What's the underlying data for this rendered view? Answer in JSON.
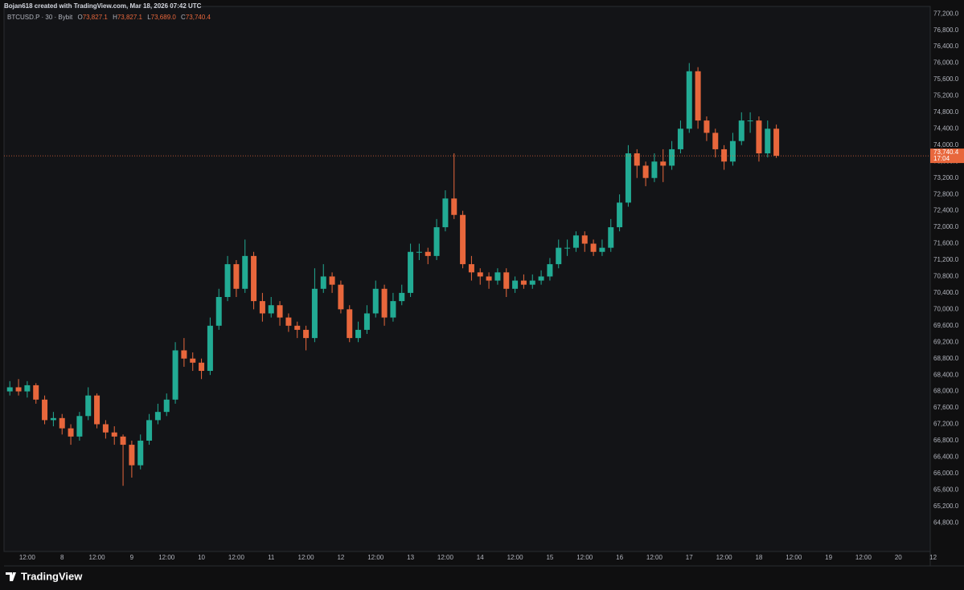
{
  "header": {
    "text": "Bojan618 created with TradingView.com, Mar 18, 2026 07:42 UTC"
  },
  "footer": {
    "brand": "TradingView"
  },
  "chart_data": {
    "type": "candlestick",
    "legend": {
      "symbol": "BTCUSD.P · 30 · Bybit",
      "fields": [
        "O",
        "H",
        "L",
        "C"
      ],
      "values": [
        73827.1,
        73827.1,
        73689.0,
        73740.4
      ],
      "value_labels": [
        "73,827.1",
        "73,827.1",
        "73,689.0",
        "73,740.4"
      ]
    },
    "last_price": {
      "value": 73740.4,
      "label": "73,740.4",
      "countdown": "17:04"
    },
    "up_color": "#22ab94",
    "down_color": "#e8673c",
    "price_line_color": "#e8673c",
    "grid": false,
    "x": [
      "2026-03-07T06:00",
      "2026-03-07T09:00",
      "2026-03-07T12:00",
      "2026-03-07T15:00",
      "2026-03-07T18:00",
      "2026-03-07T21:00",
      "2026-03-08T00:00",
      "2026-03-08T03:00",
      "2026-03-08T06:00",
      "2026-03-08T09:00",
      "2026-03-08T12:00",
      "2026-03-08T15:00",
      "2026-03-08T18:00",
      "2026-03-08T21:00",
      "2026-03-09T00:00",
      "2026-03-09T03:00",
      "2026-03-09T06:00",
      "2026-03-09T09:00",
      "2026-03-09T12:00",
      "2026-03-09T15:00",
      "2026-03-09T18:00",
      "2026-03-09T21:00",
      "2026-03-10T00:00",
      "2026-03-10T03:00",
      "2026-03-10T06:00",
      "2026-03-10T09:00",
      "2026-03-10T12:00",
      "2026-03-10T15:00",
      "2026-03-10T18:00",
      "2026-03-10T21:00",
      "2026-03-11T00:00",
      "2026-03-11T03:00",
      "2026-03-11T06:00",
      "2026-03-11T09:00",
      "2026-03-11T12:00",
      "2026-03-11T15:00",
      "2026-03-11T18:00",
      "2026-03-11T21:00",
      "2026-03-12T00:00",
      "2026-03-12T03:00",
      "2026-03-12T06:00",
      "2026-03-12T09:00",
      "2026-03-12T12:00",
      "2026-03-12T15:00",
      "2026-03-12T18:00",
      "2026-03-12T21:00",
      "2026-03-13T00:00",
      "2026-03-13T03:00",
      "2026-03-13T06:00",
      "2026-03-13T09:00",
      "2026-03-13T12:00",
      "2026-03-13T15:00",
      "2026-03-13T18:00",
      "2026-03-13T21:00",
      "2026-03-14T00:00",
      "2026-03-14T03:00",
      "2026-03-14T06:00",
      "2026-03-14T09:00",
      "2026-03-14T12:00",
      "2026-03-14T15:00",
      "2026-03-14T18:00",
      "2026-03-14T21:00",
      "2026-03-15T00:00",
      "2026-03-15T03:00",
      "2026-03-15T06:00",
      "2026-03-15T09:00",
      "2026-03-15T12:00",
      "2026-03-15T15:00",
      "2026-03-15T18:00",
      "2026-03-15T21:00",
      "2026-03-16T00:00",
      "2026-03-16T03:00",
      "2026-03-16T06:00",
      "2026-03-16T09:00",
      "2026-03-16T12:00",
      "2026-03-16T15:00",
      "2026-03-16T18:00",
      "2026-03-16T21:00",
      "2026-03-17T00:00",
      "2026-03-17T03:00",
      "2026-03-17T06:00",
      "2026-03-17T09:00",
      "2026-03-17T12:00",
      "2026-03-17T15:00",
      "2026-03-17T18:00",
      "2026-03-17T21:00",
      "2026-03-18T00:00",
      "2026-03-18T03:00",
      "2026-03-18T06:00"
    ],
    "open": [
      68000,
      68100,
      68000,
      68150,
      67800,
      67300,
      67350,
      67100,
      66900,
      67400,
      67900,
      67200,
      67000,
      66900,
      66700,
      66200,
      66800,
      67300,
      67500,
      67800,
      69000,
      68800,
      68700,
      68500,
      69600,
      70300,
      71100,
      70500,
      71300,
      70200,
      69900,
      70100,
      69800,
      69600,
      69500,
      69300,
      70500,
      70800,
      70600,
      70000,
      69300,
      69500,
      69900,
      70500,
      69800,
      70200,
      70400,
      71400,
      71400,
      71300,
      72000,
      72700,
      72300,
      71100,
      70900,
      70800,
      70700,
      70900,
      70500,
      70700,
      70600,
      70700,
      70800,
      71100,
      71500,
      71500,
      71800,
      71600,
      71400,
      71500,
      72000,
      72600,
      73800,
      73500,
      73200,
      73600,
      73500,
      73900,
      74400,
      75800,
      74600,
      74300,
      73900,
      73600,
      74100,
      74600,
      74600,
      73800,
      74400
    ],
    "high": [
      68250,
      68300,
      68250,
      68200,
      67900,
      67500,
      67450,
      67200,
      67500,
      68100,
      67950,
      67300,
      67150,
      66950,
      66800,
      66950,
      67450,
      67700,
      67950,
      69200,
      69300,
      68950,
      68800,
      69800,
      70500,
      71300,
      71200,
      71700,
      71400,
      70400,
      70300,
      70200,
      69900,
      69700,
      69600,
      71000,
      71100,
      70900,
      70700,
      70100,
      69700,
      70100,
      70700,
      70600,
      70400,
      70600,
      71600,
      71600,
      71500,
      72200,
      72900,
      73800,
      72400,
      71300,
      71000,
      70900,
      71000,
      71000,
      70800,
      70850,
      70850,
      70950,
      71250,
      71700,
      71700,
      71900,
      71900,
      71700,
      71700,
      72200,
      72800,
      74000,
      73900,
      73600,
      73800,
      73900,
      74100,
      74600,
      76000,
      75900,
      74700,
      74400,
      74000,
      74300,
      74800,
      74800,
      74700,
      74600,
      74500
    ],
    "low": [
      67900,
      67900,
      67850,
      67700,
      67200,
      67150,
      66950,
      66700,
      66800,
      67300,
      67100,
      66850,
      66700,
      65700,
      65900,
      66100,
      66700,
      67200,
      67400,
      67700,
      68600,
      68500,
      68300,
      68400,
      69500,
      70200,
      70300,
      70400,
      70000,
      69700,
      69800,
      69600,
      69450,
      69300,
      69000,
      69200,
      70400,
      70400,
      69900,
      69200,
      69200,
      69400,
      69800,
      69600,
      69700,
      70100,
      70300,
      71200,
      71100,
      71200,
      71900,
      72200,
      71000,
      70700,
      70600,
      70500,
      70600,
      70300,
      70400,
      70500,
      70500,
      70600,
      70700,
      71000,
      71300,
      71400,
      71400,
      71300,
      71300,
      71400,
      71900,
      72500,
      73200,
      73000,
      73100,
      73100,
      73400,
      73800,
      74300,
      74400,
      74100,
      73700,
      73400,
      73500,
      74000,
      74300,
      73600,
      73700,
      73689
    ],
    "close": [
      68100,
      68000,
      68150,
      67800,
      67300,
      67350,
      67100,
      66900,
      67400,
      67900,
      67200,
      67000,
      66900,
      66700,
      66200,
      66800,
      67300,
      67500,
      67800,
      69000,
      68800,
      68700,
      68500,
      69600,
      70300,
      71100,
      70500,
      71300,
      70200,
      69900,
      70100,
      69800,
      69600,
      69500,
      69300,
      70500,
      70800,
      70600,
      70000,
      69300,
      69500,
      69900,
      70500,
      69800,
      70200,
      70400,
      71400,
      71400,
      71300,
      72000,
      72700,
      72300,
      71100,
      70900,
      70800,
      70700,
      70900,
      70500,
      70700,
      70600,
      70700,
      70800,
      71100,
      71500,
      71500,
      71800,
      71600,
      71400,
      71500,
      72000,
      72600,
      73800,
      73500,
      73200,
      73600,
      73500,
      73900,
      74400,
      75800,
      74600,
      74300,
      73900,
      73600,
      74100,
      74600,
      74600,
      73800,
      74400,
      73740.4
    ],
    "xlim": [
      "2026-03-07T04:00",
      "2026-03-20T11:00"
    ],
    "xticks": [
      {
        "value": "2026-03-07T12:00",
        "label": "12:00"
      },
      {
        "value": "2026-03-08T00:00",
        "label": "8"
      },
      {
        "value": "2026-03-08T12:00",
        "label": "12:00"
      },
      {
        "value": "2026-03-09T00:00",
        "label": "9"
      },
      {
        "value": "2026-03-09T12:00",
        "label": "12:00"
      },
      {
        "value": "2026-03-10T00:00",
        "label": "10"
      },
      {
        "value": "2026-03-10T12:00",
        "label": "12:00"
      },
      {
        "value": "2026-03-11T00:00",
        "label": "11"
      },
      {
        "value": "2026-03-11T12:00",
        "label": "12:00"
      },
      {
        "value": "2026-03-12T00:00",
        "label": "12"
      },
      {
        "value": "2026-03-12T12:00",
        "label": "12:00"
      },
      {
        "value": "2026-03-13T00:00",
        "label": "13"
      },
      {
        "value": "2026-03-13T12:00",
        "label": "12:00"
      },
      {
        "value": "2026-03-14T00:00",
        "label": "14"
      },
      {
        "value": "2026-03-14T12:00",
        "label": "12:00"
      },
      {
        "value": "2026-03-15T00:00",
        "label": "15"
      },
      {
        "value": "2026-03-15T12:00",
        "label": "12:00"
      },
      {
        "value": "2026-03-16T00:00",
        "label": "16"
      },
      {
        "value": "2026-03-16T12:00",
        "label": "12:00"
      },
      {
        "value": "2026-03-17T00:00",
        "label": "17"
      },
      {
        "value": "2026-03-17T12:00",
        "label": "12:00"
      },
      {
        "value": "2026-03-18T00:00",
        "label": "18"
      },
      {
        "value": "2026-03-18T12:00",
        "label": "12:00"
      },
      {
        "value": "2026-03-19T00:00",
        "label": "19"
      },
      {
        "value": "2026-03-19T12:00",
        "label": "12:00"
      },
      {
        "value": "2026-03-20T00:00",
        "label": "20"
      },
      {
        "value": "2026-03-20T12:00",
        "label": "12"
      }
    ],
    "ylim": [
      64100,
      77380
    ],
    "yticks": [
      {
        "value": 64800,
        "label": "64,800.0"
      },
      {
        "value": 65200,
        "label": "65,200.0"
      },
      {
        "value": 65600,
        "label": "65,600.0"
      },
      {
        "value": 66000,
        "label": "66,000.0"
      },
      {
        "value": 66400,
        "label": "66,400.0"
      },
      {
        "value": 66800,
        "label": "66,800.0"
      },
      {
        "value": 67200,
        "label": "67,200.0"
      },
      {
        "value": 67600,
        "label": "67,600.0"
      },
      {
        "value": 68000,
        "label": "68,000.0"
      },
      {
        "value": 68400,
        "label": "68,400.0"
      },
      {
        "value": 68800,
        "label": "68,800.0"
      },
      {
        "value": 69200,
        "label": "69,200.0"
      },
      {
        "value": 69600,
        "label": "69,600.0"
      },
      {
        "value": 70000,
        "label": "70,000.0"
      },
      {
        "value": 70400,
        "label": "70,400.0"
      },
      {
        "value": 70800,
        "label": "70,800.0"
      },
      {
        "value": 71200,
        "label": "71,200.0"
      },
      {
        "value": 71600,
        "label": "71,600.0"
      },
      {
        "value": 72000,
        "label": "72,000.0"
      },
      {
        "value": 72400,
        "label": "72,400.0"
      },
      {
        "value": 72800,
        "label": "72,800.0"
      },
      {
        "value": 73200,
        "label": "73,200.0"
      },
      {
        "value": 73600,
        "label": "73,600.0"
      },
      {
        "value": 74000,
        "label": "74,000.0"
      },
      {
        "value": 74400,
        "label": "74,400.0"
      },
      {
        "value": 74800,
        "label": "74,800.0"
      },
      {
        "value": 75200,
        "label": "75,200.0"
      },
      {
        "value": 75600,
        "label": "75,600.0"
      },
      {
        "value": 76000,
        "label": "76,000.0"
      },
      {
        "value": 76400,
        "label": "76,400.0"
      },
      {
        "value": 76800,
        "label": "76,800.0"
      },
      {
        "value": 77200,
        "label": "77,200.0"
      }
    ]
  }
}
